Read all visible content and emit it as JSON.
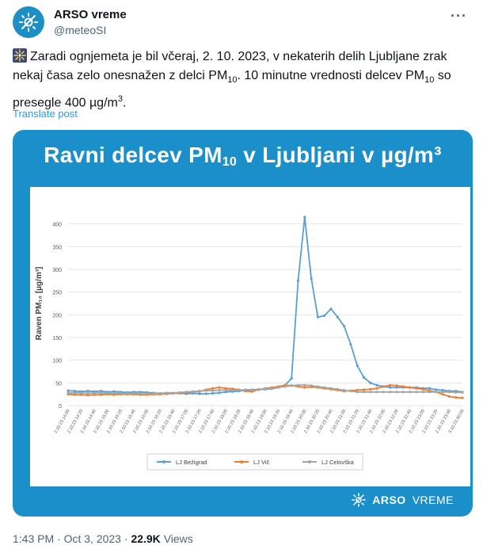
{
  "account": {
    "name": "ARSO vreme",
    "handle": "@meteoSI",
    "more_label": "···"
  },
  "tweet": {
    "text_part1": "Zaradi ognjemeta je bil včeraj, 2. 10. 2023, v nekaterih delih Ljubljane zrak nekaj časa zelo onesnažen z delci PM",
    "sub1": "10",
    "text_part2": ". 10 minutne vrednosti delcev PM",
    "sub2": "10",
    "text_part3": " so presegle 400 µg/m",
    "sup": "3",
    "text_part4": ".",
    "translate_label": "Translate post"
  },
  "card": {
    "title_part1": "Ravni delcev PM",
    "title_sub": "10",
    "title_part2": " v Ljubljani v µg/m³",
    "brand_bold": "ARSO",
    "brand_light": "VREME"
  },
  "footer": {
    "time": "1:43 PM",
    "date": "Oct 3, 2023",
    "views_count": "22.9K",
    "views_label": "Views"
  },
  "colors": {
    "card_bg": "#1a8fca",
    "series_bezigrad": "#5a9fd4",
    "series_vic": "#ed7d31",
    "series_celovska": "#a5a5a5"
  },
  "chart_data": {
    "type": "line",
    "title": "",
    "xlabel": "",
    "ylabel": "Raven PM₁₀ [µg/m³]",
    "ylim": [
      0,
      450
    ],
    "yticks": [
      0,
      50,
      100,
      150,
      200,
      250,
      300,
      350,
      400
    ],
    "grid": true,
    "legend": "bottom",
    "categories": [
      "2.10.23 14:00",
      "2.10.23 14:10",
      "2.10.23 14:20",
      "2.10.23 14:30",
      "2.10.23 14:40",
      "2.10.23 14:50",
      "2.10.23 15:00",
      "2.10.23 15:10",
      "2.10.23 15:20",
      "2.10.23 15:30",
      "2.10.23 15:40",
      "2.10.23 15:50",
      "2.10.23 16:00",
      "2.10.23 16:10",
      "2.10.23 16:20",
      "2.10.23 16:30",
      "2.10.23 16:40",
      "2.10.23 16:50",
      "2.10.23 17:00",
      "2.10.23 17:10",
      "2.10.23 17:20",
      "2.10.23 17:30",
      "2.10.23 17:40",
      "2.10.23 17:50",
      "2.10.23 18:00",
      "2.10.23 18:10",
      "2.10.23 18:20",
      "2.10.23 18:30",
      "2.10.23 18:40",
      "2.10.23 18:50",
      "2.10.23 19:00",
      "2.10.23 19:10",
      "2.10.23 19:20",
      "2.10.23 19:30",
      "2.10.23 19:40",
      "2.10.23 19:50",
      "2.10.23 20:00",
      "2.10.23 20:10",
      "2.10.23 20:20",
      "2.10.23 20:30",
      "2.10.23 20:40",
      "2.10.23 20:50",
      "2.10.23 21:00",
      "2.10.23 21:10",
      "2.10.23 21:20",
      "2.10.23 21:30",
      "2.10.23 21:40",
      "2.10.23 21:50",
      "2.10.23 22:00",
      "2.10.23 22:10",
      "2.10.23 22:20",
      "2.10.23 22:30",
      "2.10.23 22:40",
      "2.10.23 22:50",
      "2.10.23 23:00",
      "2.10.23 23:10",
      "2.10.23 23:20",
      "2.10.23 23:30",
      "2.10.23 23:40",
      "2.10.23 23:50",
      "3.10.23 00:00"
    ],
    "xtick_labels": [
      "2.10.23 14:00",
      "2.10.23 14:20",
      "2.10.23 14:40",
      "2.10.23 15:00",
      "2.10.23 15:20",
      "2.10.23 15:40",
      "2.10.23 16:00",
      "2.10.23 16:20",
      "2.10.23 16:40",
      "2.10.23 17:00",
      "2.10.23 17:20",
      "2.10.23 17:40",
      "2.10.23 18:00",
      "2.10.23 18:20",
      "2.10.23 18:40",
      "2.10.23 19:00",
      "2.10.23 19:20",
      "2.10.23 19:40",
      "2.10.23 20:00",
      "2.10.23 20:20",
      "2.10.23 20:40",
      "2.10.23 21:00",
      "2.10.23 21:20",
      "2.10.23 21:40",
      "2.10.23 22:00",
      "2.10.23 22:20",
      "2.10.23 22:40",
      "2.10.23 23:00",
      "2.10.23 23:20",
      "2.10.23 23:40",
      "3.10.23 00:00"
    ],
    "series": [
      {
        "name": "LJ Bežigrad",
        "color": "#5a9fd4",
        "values": [
          33,
          32,
          31,
          32,
          31,
          32,
          30,
          31,
          30,
          29,
          30,
          30,
          29,
          28,
          27,
          26,
          27,
          27,
          26,
          27,
          26,
          26,
          27,
          28,
          30,
          31,
          32,
          34,
          35,
          35,
          36,
          37,
          40,
          45,
          60,
          275,
          415,
          280,
          195,
          198,
          213,
          195,
          175,
          135,
          88,
          62,
          50,
          45,
          42,
          40,
          40,
          40,
          40,
          40,
          38,
          38,
          35,
          34,
          32,
          32,
          30
        ]
      },
      {
        "name": "LJ Vič",
        "color": "#ed7d31",
        "values": [
          25,
          24,
          24,
          23,
          24,
          24,
          25,
          24,
          25,
          25,
          25,
          24,
          24,
          25,
          25,
          26,
          27,
          28,
          29,
          30,
          31,
          35,
          38,
          40,
          38,
          37,
          35,
          32,
          31,
          35,
          38,
          40,
          42,
          45,
          44,
          42,
          40,
          41,
          40,
          38,
          36,
          34,
          32,
          33,
          34,
          35,
          36,
          38,
          42,
          45,
          44,
          42,
          40,
          38,
          36,
          33,
          30,
          25,
          20,
          18,
          17
        ]
      },
      {
        "name": "LJ Celovška",
        "color": "#a5a5a5",
        "values": [
          28,
          28,
          28,
          27,
          28,
          28,
          27,
          27,
          27,
          27,
          27,
          26,
          26,
          27,
          27,
          28,
          28,
          29,
          30,
          31,
          32,
          33,
          33,
          34,
          34,
          34,
          34,
          35,
          35,
          36,
          37,
          38,
          40,
          42,
          44,
          45,
          45,
          44,
          42,
          40,
          38,
          36,
          34,
          32,
          30,
          30,
          30,
          30,
          30,
          30,
          30,
          30,
          30,
          30,
          30,
          30,
          30,
          30,
          30,
          29,
          29
        ]
      }
    ]
  }
}
